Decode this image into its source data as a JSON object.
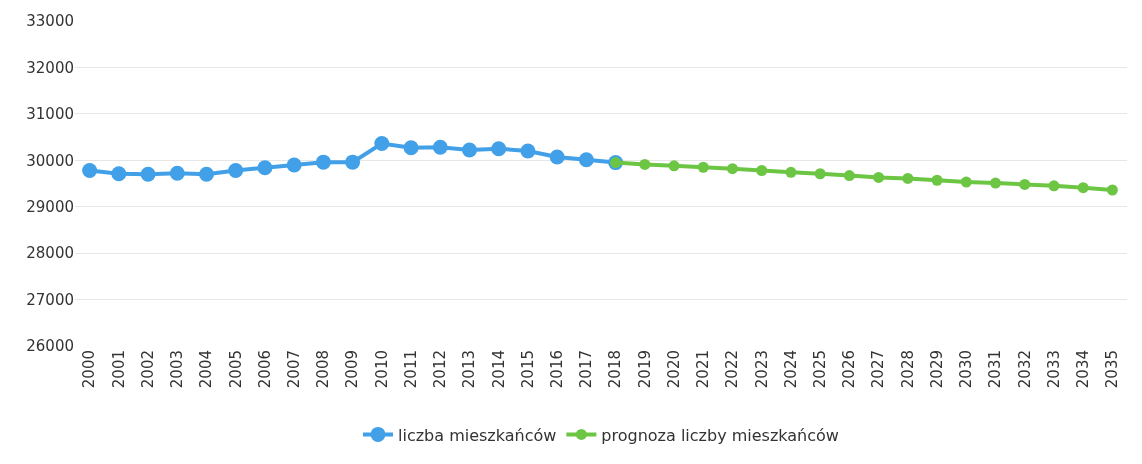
{
  "chart_data": {
    "type": "line",
    "categories": [
      "2000",
      "2001",
      "2002",
      "2003",
      "2004",
      "2005",
      "2006",
      "2007",
      "2008",
      "2009",
      "2010",
      "2011",
      "2012",
      "2013",
      "2014",
      "2015",
      "2016",
      "2017",
      "2018",
      "2019",
      "2020",
      "2021",
      "2022",
      "2023",
      "2024",
      "2025",
      "2026",
      "2027",
      "2028",
      "2029",
      "2030",
      "2031",
      "2032",
      "2033",
      "2034",
      "2035"
    ],
    "series": [
      {
        "name": "liczba mieszkańców",
        "color": "#41a0e8",
        "values": [
          29780,
          29710,
          29700,
          29720,
          29700,
          29780,
          29840,
          29900,
          29960,
          29960,
          30360,
          30270,
          30280,
          30220,
          30250,
          30200,
          30070,
          30010,
          29950,
          null,
          null,
          null,
          null,
          null,
          null,
          null,
          null,
          null,
          null,
          null,
          null,
          null,
          null,
          null,
          null,
          null
        ]
      },
      {
        "name": "prognoza liczby mieszkańców",
        "color": "#6cc644",
        "values": [
          null,
          null,
          null,
          null,
          null,
          null,
          null,
          null,
          null,
          null,
          null,
          null,
          null,
          null,
          null,
          null,
          null,
          null,
          29950,
          29910,
          29880,
          29850,
          29820,
          29780,
          29740,
          29710,
          29670,
          29630,
          29610,
          29570,
          29530,
          29510,
          29480,
          29450,
          29410,
          29360
        ]
      }
    ],
    "ylim": [
      26000,
      33000
    ],
    "yticks": [
      26000,
      27000,
      28000,
      29000,
      30000,
      31000,
      32000,
      33000
    ],
    "grid": "y",
    "legend": "bottom",
    "marker": "circle",
    "line_style": "solid"
  }
}
